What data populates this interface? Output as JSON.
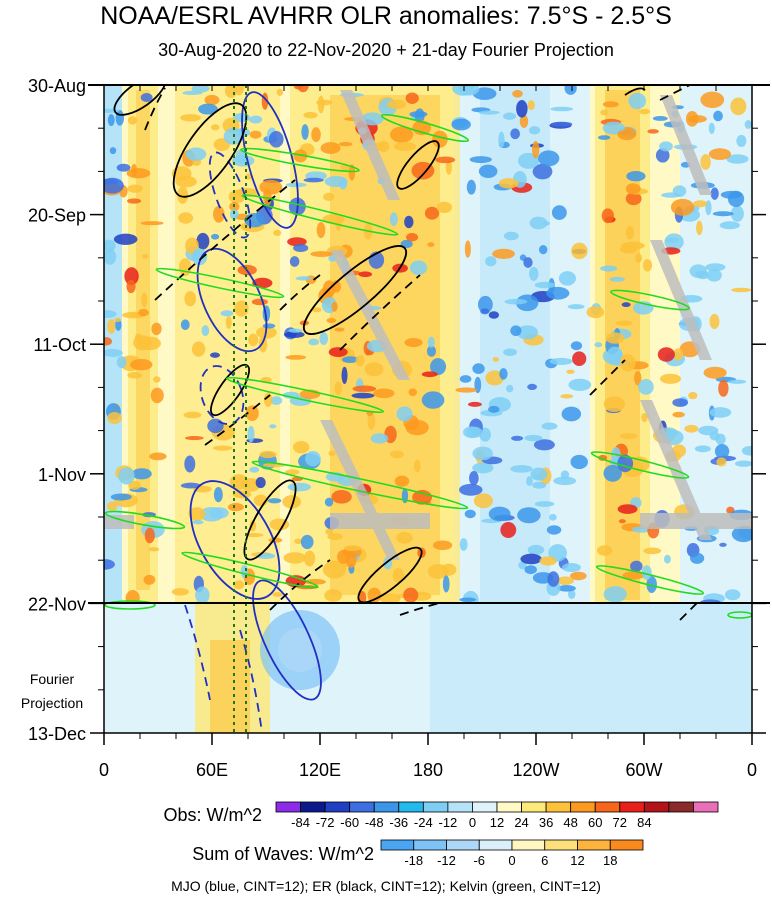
{
  "title": "NOAA/ESRL AVHRR OLR anomalies: 7.5°S - 2.5°S",
  "subtitle": "30-Aug-2020 to 22-Nov-2020 + 21-day Fourier Projection",
  "footer_note": "MJO (blue, CINT=12); ER (black, CINT=12); Kelvin (green, CINT=12)",
  "projection_label_line1": "Fourier",
  "projection_label_line2": "Projection",
  "chart_data": {
    "type": "heatmap",
    "x_axis": {
      "ticks": [
        "0",
        "60E",
        "120E",
        "180",
        "120W",
        "60W",
        "0"
      ],
      "tick_longitudes": [
        0,
        60,
        120,
        180,
        240,
        300,
        360
      ],
      "range": [
        0,
        360
      ]
    },
    "y_axis": {
      "ticks": [
        "30-Aug",
        "20-Sep",
        "11-Oct",
        "1-Nov",
        "22-Nov",
        "13-Dec"
      ],
      "range": [
        "30-Aug-2020",
        "13-Dec-2020"
      ],
      "observed_end": "22-Nov-2020",
      "minor_ticks": "weekly"
    },
    "obs_legend": {
      "label": "Obs: W/m^2",
      "levels": [
        "-84",
        "-72",
        "-60",
        "-48",
        "-36",
        "-24",
        "-12",
        "0",
        "12",
        "24",
        "36",
        "48",
        "60",
        "72",
        "84"
      ],
      "colors": [
        "#8c2ce8",
        "#0a1a8c",
        "#1f3fc4",
        "#3d6fe0",
        "#3b96ea",
        "#22b9ee",
        "#7fcff5",
        "#b5e4f8",
        "#dff3fb",
        "#fff9c5",
        "#fde87a",
        "#fcc23a",
        "#fb9a1e",
        "#f7661a",
        "#e8201a",
        "#b3141b",
        "#8a2a2a",
        "#e86fb8"
      ]
    },
    "waves_legend": {
      "label": "Sum of Waves: W/m^2",
      "levels": [
        "-18",
        "-12",
        "-6",
        "0",
        "6",
        "12",
        "18"
      ],
      "colors": [
        "#4aa6f2",
        "#7fc3f6",
        "#aed8f8",
        "#dbeffb",
        "#fff6c2",
        "#fde07a",
        "#fcb43c",
        "#f98a1e"
      ]
    },
    "contours": [
      {
        "wave": "MJO",
        "color": "blue",
        "cint": 12
      },
      {
        "wave": "ER",
        "color": "black",
        "cint": 12
      },
      {
        "wave": "Kelvin",
        "color": "green",
        "cint": 12
      }
    ]
  }
}
